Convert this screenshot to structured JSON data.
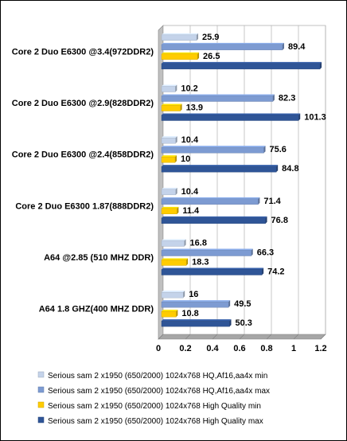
{
  "chart_data": {
    "type": "bar",
    "orientation": "horizontal",
    "categories": [
      "Core 2 Duo E6300 @3.4(972DDR2)",
      "Core 2 Duo E6300 @2.9(828DDR2)",
      "Core 2 Duo E6300 @2.4(858DDR2)",
      "Core 2 Duo E6300 1.87(888DDR2)",
      "A64 @2.85 (510 MHZ DDR)",
      "A64 1.8 GHZ(400 MHZ DDR)"
    ],
    "series": [
      {
        "name": "Serious sam 2 x1950 (650/2000) 1024x768 HQ,Af16,aa4x min",
        "color": "#c4d3ea",
        "values": [
          25.9,
          10.2,
          10.4,
          10.4,
          16.8,
          16
        ],
        "labels": [
          "25.9",
          "10.2",
          "10.4",
          "10.4",
          "16.8",
          "16"
        ]
      },
      {
        "name": "Serious sam 2 x1950 (650/2000) 1024x768 HQ,Af16,aa4x max",
        "color": "#7d9bd2",
        "values": [
          89.4,
          82.3,
          75.6,
          71.4,
          66.3,
          49.5
        ],
        "labels": [
          "89.4",
          "82.3",
          "75.6",
          "71.4",
          "66.3",
          "49.5"
        ]
      },
      {
        "name": "Serious sam 2 x1950 (650/2000) 1024x768 High Quality min",
        "color": "#ffcc00",
        "values": [
          26.5,
          13.9,
          10,
          11.4,
          18.3,
          10.8
        ],
        "labels": [
          "26.5",
          "13.9",
          "10",
          "11.4",
          "18.3",
          "10.8"
        ]
      },
      {
        "name": "Serious sam 2 x1950 (650/2000) 1024x768 High Quality max",
        "color": "#2f5597",
        "values": [
          117.1,
          101.3,
          84.8,
          76.8,
          74.2,
          50.3
        ],
        "labels": [
          "",
          "101.3",
          "84.8",
          "76.8",
          "74.2",
          "50.3"
        ]
      }
    ],
    "x_axis": {
      "ticks": [
        "0",
        "0.2",
        "0.4",
        "0.6",
        "0.8",
        "1",
        "1.2"
      ],
      "range": [
        0,
        1.2
      ],
      "full_scale_value": 100
    },
    "grid": true,
    "legend_position": "bottom"
  }
}
